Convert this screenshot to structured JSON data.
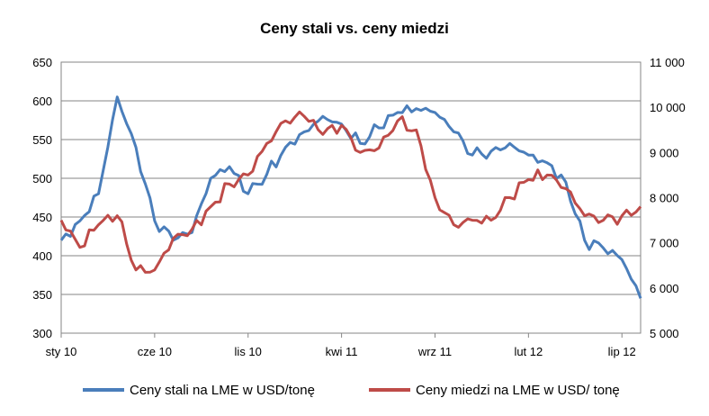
{
  "chart_data": {
    "type": "line",
    "title": "Ceny stali vs. ceny miedzi",
    "x": [
      "2010-01",
      "2010-02",
      "2010-03",
      "2010-04",
      "2010-05",
      "2010-06",
      "2010-07",
      "2010-08",
      "2010-09",
      "2010-10",
      "2010-11",
      "2010-12",
      "2011-01",
      "2011-02",
      "2011-03",
      "2011-04",
      "2011-05",
      "2011-06",
      "2011-07",
      "2011-08",
      "2011-09",
      "2011-10",
      "2011-11",
      "2011-12",
      "2012-01",
      "2012-02",
      "2012-03",
      "2012-04",
      "2012-05",
      "2012-06",
      "2012-07",
      "2012-08"
    ],
    "x_ticks": [
      "sty 10",
      "cze 10",
      "lis 10",
      "kwi 11",
      "wrz 11",
      "lut 12",
      "lip 12"
    ],
    "x_tick_dates": [
      "2010-01",
      "2010-06",
      "2010-11",
      "2011-04",
      "2011-09",
      "2012-02",
      "2012-07"
    ],
    "y_left": {
      "lim": [
        300,
        650
      ],
      "ticks": [
        "300",
        "350",
        "400",
        "450",
        "500",
        "550",
        "600",
        "650"
      ]
    },
    "y_right": {
      "lim": [
        5000,
        11000
      ],
      "ticks": [
        "5 000",
        "6 000",
        "7 000",
        "8 000",
        "9 000",
        "10 000",
        "11 000"
      ]
    },
    "grid": true,
    "legend": "bottom",
    "series": [
      {
        "name": "Ceny stali na LME w USD/tonę",
        "axis": "left",
        "color": "#4a7ebb",
        "values": [
          420,
          445,
          480,
          605,
          540,
          445,
          420,
          430,
          500,
          515,
          480,
          505,
          540,
          560,
          580,
          570,
          545,
          565,
          585,
          590,
          585,
          560,
          530,
          535,
          545,
          530,
          520,
          495,
          420,
          410,
          395,
          345
        ]
      },
      {
        "name": "Ceny miedzi na LME w USD/ tonę",
        "axis": "right",
        "color": "#be4b48",
        "values": [
          7500,
          6900,
          7400,
          7600,
          6400,
          6400,
          7100,
          7300,
          7800,
          8300,
          8500,
          9200,
          9700,
          9800,
          9400,
          9600,
          9000,
          9100,
          9700,
          9500,
          8000,
          7400,
          7500,
          7500,
          8000,
          8400,
          8500,
          8200,
          7600,
          7500,
          7600,
          7800
        ]
      }
    ]
  }
}
